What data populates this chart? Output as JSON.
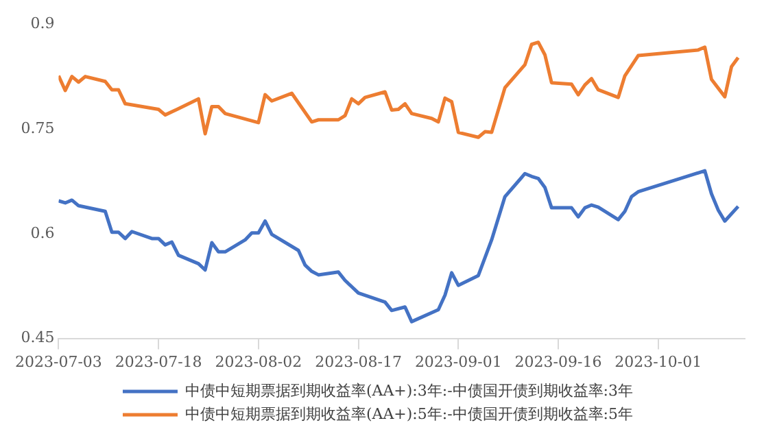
{
  "chart_data": {
    "type": "line",
    "xlim": [
      "2023-07-03",
      "2023-10-14"
    ],
    "xticks": [
      "2023-07-03",
      "2023-07-18",
      "2023-08-02",
      "2023-08-17",
      "2023-09-01",
      "2023-09-16",
      "2023-10-01"
    ],
    "ylim": [
      0.45,
      0.9
    ],
    "yticks": [
      0.45,
      0.6,
      0.75,
      0.9
    ],
    "grid": false,
    "legend": "bottom",
    "marker": "none",
    "line_style": "solid",
    "series": [
      {
        "name": "中债中短期票据到期收益率(AA+):3年:-中债国开债到期收益率:3年",
        "color": "#4472c4",
        "x": [
          "2023-07-03",
          "2023-07-04",
          "2023-07-05",
          "2023-07-06",
          "2023-07-10",
          "2023-07-11",
          "2023-07-12",
          "2023-07-13",
          "2023-07-14",
          "2023-07-17",
          "2023-07-18",
          "2023-07-19",
          "2023-07-20",
          "2023-07-21",
          "2023-07-24",
          "2023-07-25",
          "2023-07-26",
          "2023-07-27",
          "2023-07-28",
          "2023-07-31",
          "2023-08-01",
          "2023-08-02",
          "2023-08-03",
          "2023-08-04",
          "2023-08-08",
          "2023-08-09",
          "2023-08-10",
          "2023-08-11",
          "2023-08-14",
          "2023-08-15",
          "2023-08-17",
          "2023-08-21",
          "2023-08-22",
          "2023-08-24",
          "2023-08-25",
          "2023-08-29",
          "2023-08-30",
          "2023-08-31",
          "2023-09-01",
          "2023-09-04",
          "2023-09-06",
          "2023-09-08",
          "2023-09-11",
          "2023-09-12",
          "2023-09-13",
          "2023-09-14",
          "2023-09-15",
          "2023-09-18",
          "2023-09-19",
          "2023-09-20",
          "2023-09-21",
          "2023-09-22",
          "2023-09-25",
          "2023-09-26",
          "2023-09-27",
          "2023-09-28",
          "2023-10-08",
          "2023-10-09",
          "2023-10-10",
          "2023-10-11",
          "2023-10-13"
        ],
        "values": [
          0.647,
          0.644,
          0.648,
          0.64,
          0.632,
          0.602,
          0.602,
          0.593,
          0.603,
          0.593,
          0.593,
          0.584,
          0.588,
          0.569,
          0.557,
          0.548,
          0.587,
          0.574,
          0.574,
          0.591,
          0.601,
          0.601,
          0.618,
          0.599,
          0.576,
          0.555,
          0.546,
          0.541,
          0.545,
          0.533,
          0.515,
          0.502,
          0.49,
          0.495,
          0.474,
          0.491,
          0.512,
          0.544,
          0.526,
          0.54,
          0.591,
          0.653,
          0.686,
          0.682,
          0.679,
          0.666,
          0.637,
          0.637,
          0.624,
          0.637,
          0.641,
          0.638,
          0.62,
          0.632,
          0.653,
          0.66,
          0.69,
          0.657,
          0.634,
          0.618,
          0.639
        ]
      },
      {
        "name": "中债中短期票据到期收益率(AA+):5年:-中债国开债到期收益率:5年",
        "color": "#ed7d31",
        "x": [
          "2023-07-03",
          "2023-07-04",
          "2023-07-05",
          "2023-07-06",
          "2023-07-07",
          "2023-07-10",
          "2023-07-11",
          "2023-07-12",
          "2023-07-13",
          "2023-07-18",
          "2023-07-19",
          "2023-07-21",
          "2023-07-24",
          "2023-07-25",
          "2023-07-26",
          "2023-07-27",
          "2023-07-28",
          "2023-08-02",
          "2023-08-03",
          "2023-08-04",
          "2023-08-07",
          "2023-08-10",
          "2023-08-11",
          "2023-08-14",
          "2023-08-15",
          "2023-08-16",
          "2023-08-17",
          "2023-08-18",
          "2023-08-21",
          "2023-08-22",
          "2023-08-23",
          "2023-08-24",
          "2023-08-25",
          "2023-08-28",
          "2023-08-29",
          "2023-08-30",
          "2023-08-31",
          "2023-09-01",
          "2023-09-04",
          "2023-09-05",
          "2023-09-06",
          "2023-09-08",
          "2023-09-11",
          "2023-09-12",
          "2023-09-13",
          "2023-09-14",
          "2023-09-15",
          "2023-09-18",
          "2023-09-19",
          "2023-09-20",
          "2023-09-21",
          "2023-09-22",
          "2023-09-25",
          "2023-09-26",
          "2023-09-28",
          "2023-10-07",
          "2023-10-08",
          "2023-10-09",
          "2023-10-11",
          "2023-10-12",
          "2023-10-13"
        ],
        "values": [
          0.826,
          0.805,
          0.825,
          0.817,
          0.825,
          0.818,
          0.806,
          0.806,
          0.786,
          0.778,
          0.77,
          0.779,
          0.793,
          0.743,
          0.782,
          0.782,
          0.772,
          0.759,
          0.799,
          0.79,
          0.801,
          0.76,
          0.763,
          0.763,
          0.769,
          0.793,
          0.786,
          0.795,
          0.803,
          0.777,
          0.778,
          0.786,
          0.772,
          0.765,
          0.76,
          0.794,
          0.789,
          0.745,
          0.738,
          0.746,
          0.745,
          0.809,
          0.842,
          0.871,
          0.874,
          0.856,
          0.816,
          0.814,
          0.799,
          0.813,
          0.822,
          0.806,
          0.795,
          0.826,
          0.855,
          0.863,
          0.867,
          0.821,
          0.796,
          0.839,
          0.852
        ]
      }
    ]
  }
}
